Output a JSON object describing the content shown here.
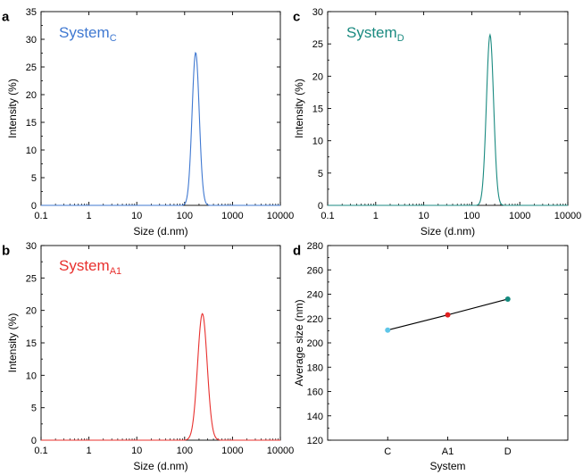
{
  "chart_data": [
    {
      "panel": "a",
      "type": "line",
      "label_main": "System",
      "label_sub": "C",
      "color": "#3f78d1",
      "xlabel": "Size (d.nm)",
      "ylabel": "Intensity (%)",
      "xscale": "log",
      "xlim": [
        0.1,
        10000
      ],
      "ylim": [
        0,
        35
      ],
      "xticks": [
        "0.1",
        "1",
        "10",
        "100",
        "1000",
        "10000"
      ],
      "yticks": [
        "0",
        "5",
        "10",
        "15",
        "20",
        "25",
        "30",
        "35"
      ],
      "peak_center": 170,
      "peak_height": 27.6,
      "peak_log_sigma": 0.075
    },
    {
      "panel": "c",
      "type": "line",
      "label_main": "System",
      "label_sub": "D",
      "color": "#1a8a80",
      "xlabel": "Size (d.nm)",
      "ylabel": "Intensity (%)",
      "xscale": "log",
      "xlim": [
        0.1,
        10000
      ],
      "ylim": [
        0,
        30
      ],
      "xticks": [
        "0.1",
        "1",
        "10",
        "100",
        "1000",
        "10000"
      ],
      "yticks": [
        "0",
        "5",
        "10",
        "15",
        "20",
        "25",
        "30"
      ],
      "peak_center": 240,
      "peak_height": 26.4,
      "peak_log_sigma": 0.075
    },
    {
      "panel": "b",
      "type": "line",
      "label_main": "System",
      "label_sub": "A1",
      "color": "#e8302e",
      "xlabel": "Size (d.nm)",
      "ylabel": "Intensity (%)",
      "xscale": "log",
      "xlim": [
        0.1,
        10000
      ],
      "ylim": [
        0,
        30
      ],
      "xticks": [
        "0.1",
        "1",
        "10",
        "100",
        "1000",
        "10000"
      ],
      "yticks": [
        "0",
        "5",
        "10",
        "15",
        "20",
        "25",
        "30"
      ],
      "peak_center": 235,
      "peak_height": 19.5,
      "peak_log_sigma": 0.1
    },
    {
      "panel": "d",
      "type": "line",
      "xlabel": "System",
      "ylabel": "Average size (nm)",
      "ylim": [
        120,
        280
      ],
      "yticks": [
        "120",
        "140",
        "160",
        "180",
        "200",
        "220",
        "240",
        "260",
        "280"
      ],
      "categories": [
        "C",
        "A1",
        "D"
      ],
      "values": [
        210.5,
        223,
        236
      ],
      "point_colors": [
        "#5fc6e8",
        "#e02020",
        "#138a7e"
      ],
      "line_color": "#000000"
    }
  ]
}
